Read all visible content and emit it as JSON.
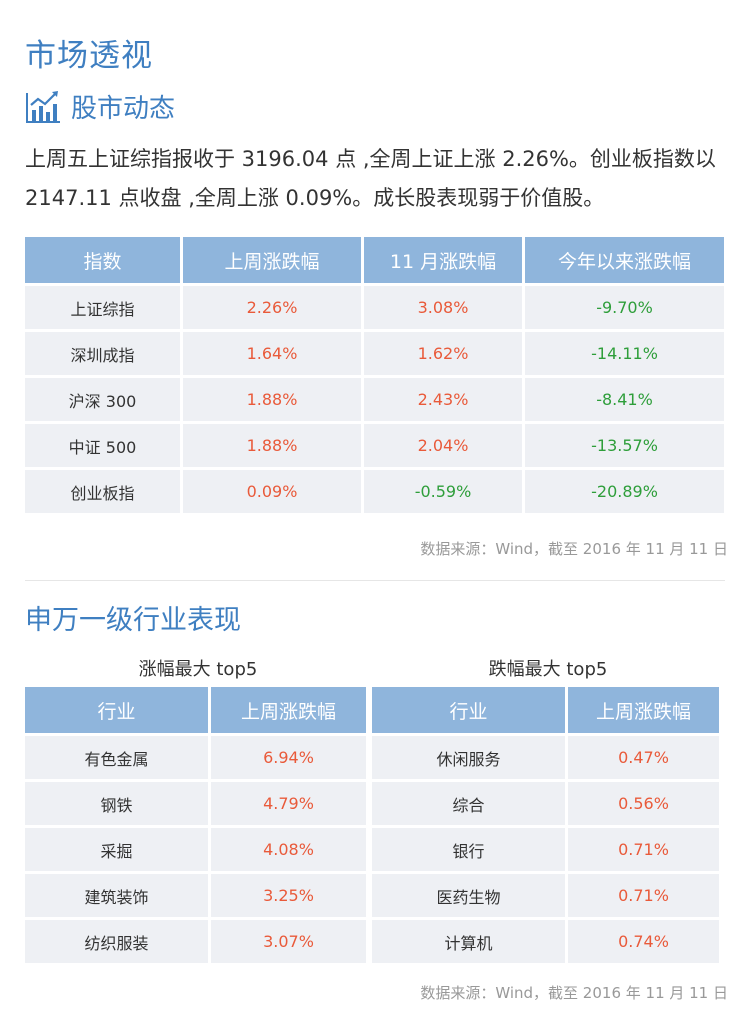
{
  "page_title": "市场透视",
  "subhead": {
    "icon": "bar-chart-trend-icon",
    "text": "股市动态"
  },
  "summary": "上周五上证综指报收于 3196.04 点 ,全周上证上涨 2.26%。创业板指数以 2147.11 点收盘 ,全周上涨 0.09%。成长股表现弱于价值股。",
  "index_table": {
    "headers": [
      "指数",
      "上周涨跌幅",
      "11 月涨跌幅",
      "今年以来涨跌幅"
    ],
    "rows": [
      [
        "上证综指",
        "2.26%",
        "3.08%",
        "-9.70%"
      ],
      [
        "深圳成指",
        "1.64%",
        "1.62%",
        "-14.11%"
      ],
      [
        "沪深 300",
        "1.88%",
        "2.43%",
        "-8.41%"
      ],
      [
        "中证 500",
        "1.88%",
        "2.04%",
        "-13.57%"
      ],
      [
        "创业板指",
        "0.09%",
        "-0.59%",
        "-20.89%"
      ]
    ]
  },
  "source1": "数据来源：Wind，截至 2016 年 11 月 11 日",
  "section2_title": "申万一级行业表现",
  "gainers": {
    "caption": "涨幅最大 top5",
    "headers": [
      "行业",
      "上周涨跌幅"
    ],
    "rows": [
      [
        "有色金属",
        "6.94%"
      ],
      [
        "钢铁",
        "4.79%"
      ],
      [
        "采掘",
        "4.08%"
      ],
      [
        "建筑装饰",
        "3.25%"
      ],
      [
        "纺织服装",
        "3.07%"
      ]
    ]
  },
  "losers": {
    "caption": "跌幅最大 top5",
    "headers": [
      "行业",
      "上周涨跌幅"
    ],
    "rows": [
      [
        "休闲服务",
        "0.47%"
      ],
      [
        "综合",
        "0.56%"
      ],
      [
        "银行",
        "0.71%"
      ],
      [
        "医药生物",
        "0.71%"
      ],
      [
        "计算机",
        "0.74%"
      ]
    ]
  },
  "source2": "数据来源：Wind，截至 2016 年 11 月 11 日",
  "colors": {
    "accent": "#3f7fc1",
    "header_bg": "#8fb5dc",
    "up": "#e95a3a",
    "down": "#2e9e3a"
  }
}
